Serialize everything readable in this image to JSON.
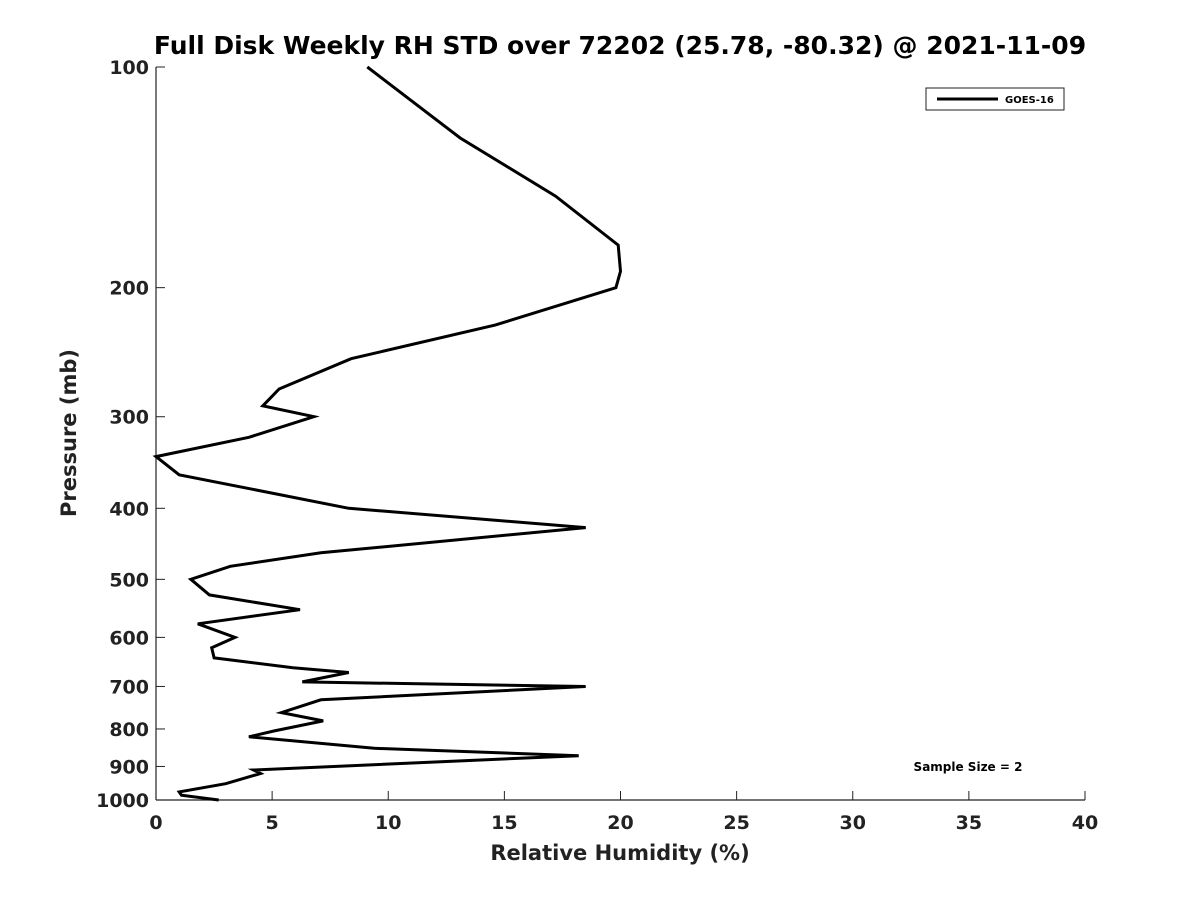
{
  "chart_data": {
    "type": "line",
    "title": "Full Disk Weekly RH STD over 72202 (25.78, -80.32) @ 2021-11-09",
    "xlabel": "Relative Humidity (%)",
    "ylabel": "Pressure (mb)",
    "xlim": [
      0,
      40
    ],
    "ylim": [
      100,
      1000
    ],
    "yscale": "log",
    "yaxis_inverted": true,
    "xticks": [
      0,
      5,
      10,
      15,
      20,
      25,
      30,
      35,
      40
    ],
    "yticks": [
      100,
      200,
      300,
      400,
      500,
      600,
      700,
      800,
      900,
      1000
    ],
    "legend_position": "top-right",
    "grid": false,
    "annotation": "Sample Size = 2",
    "series": [
      {
        "name": "GOES-16",
        "color": "#000000",
        "x": [
          9.1,
          13.1,
          17.2,
          19.9,
          20.0,
          19.8,
          14.6,
          8.4,
          5.3,
          4.6,
          6.8,
          4.0,
          0.0,
          1.0,
          8.3,
          18.5,
          7.1,
          3.2,
          1.5,
          2.3,
          6.2,
          1.8,
          3.4,
          2.4,
          2.5,
          5.9,
          8.3,
          6.3,
          18.5,
          7.1,
          5.4,
          7.2,
          5.1,
          4.0,
          9.4,
          18.2,
          4.2,
          4.5,
          3.0,
          1.0,
          1.1,
          2.7
        ],
        "y": [
          100,
          125,
          150,
          175,
          190,
          200,
          225,
          250,
          275,
          290,
          300,
          320,
          340,
          360,
          400,
          425,
          460,
          480,
          500,
          525,
          550,
          575,
          600,
          620,
          640,
          660,
          670,
          690,
          700,
          730,
          760,
          780,
          805,
          820,
          850,
          870,
          910,
          920,
          950,
          975,
          985,
          1000
        ]
      }
    ]
  }
}
